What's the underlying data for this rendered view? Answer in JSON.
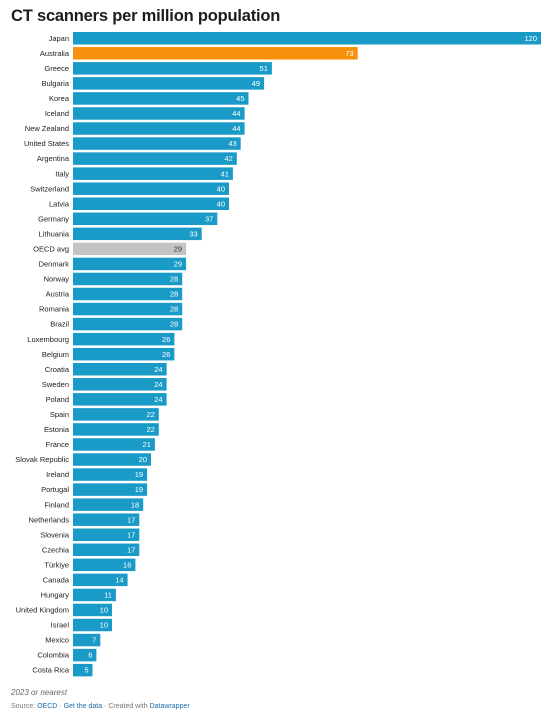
{
  "title": "CT scanners per million population",
  "footnote": "2023 or nearest",
  "source": {
    "label": "Source:",
    "name": "OECD",
    "sep1": "·",
    "get_data": "Get the data",
    "sep2": "· Created with",
    "tool": "Datawrapper"
  },
  "colors": {
    "default": "#1a9bc7",
    "highlight": "#f7900d",
    "average": "#c4c4c4",
    "label": "#222222"
  },
  "chart_data": {
    "type": "bar",
    "orientation": "horizontal",
    "title": "CT scanners per million population",
    "xlabel": "",
    "ylabel": "",
    "xlim": [
      0,
      120
    ],
    "grid": false,
    "legend": "none",
    "categories": [
      "Japan",
      "Australia",
      "Greece",
      "Bulgaria",
      "Korea",
      "Iceland",
      "New Zealand",
      "United States",
      "Argentina",
      "Italy",
      "Switzerland",
      "Latvia",
      "Germany",
      "Lithuania",
      "OECD avg",
      "Denmark",
      "Norway",
      "Austria",
      "Romania",
      "Brazil",
      "Luxembourg",
      "Belgium",
      "Croatia",
      "Sweden",
      "Poland",
      "Spain",
      "Estonia",
      "France",
      "Slovak Republic",
      "Ireland",
      "Portugal",
      "Finland",
      "Netherlands",
      "Slovenia",
      "Czechia",
      "Türkiye",
      "Canada",
      "Hungary",
      "United Kingdom",
      "Israel",
      "Mexico",
      "Colombia",
      "Costa Rica"
    ],
    "values": [
      120,
      73,
      51,
      49,
      45,
      44,
      44,
      43,
      42,
      41,
      40,
      40,
      37,
      33,
      29,
      29,
      28,
      28,
      28,
      28,
      26,
      26,
      24,
      24,
      24,
      22,
      22,
      21,
      20,
      19,
      19,
      18,
      17,
      17,
      17,
      16,
      14,
      11,
      10,
      10,
      7,
      6,
      5
    ],
    "highlight": "Australia",
    "average": "OECD avg"
  }
}
